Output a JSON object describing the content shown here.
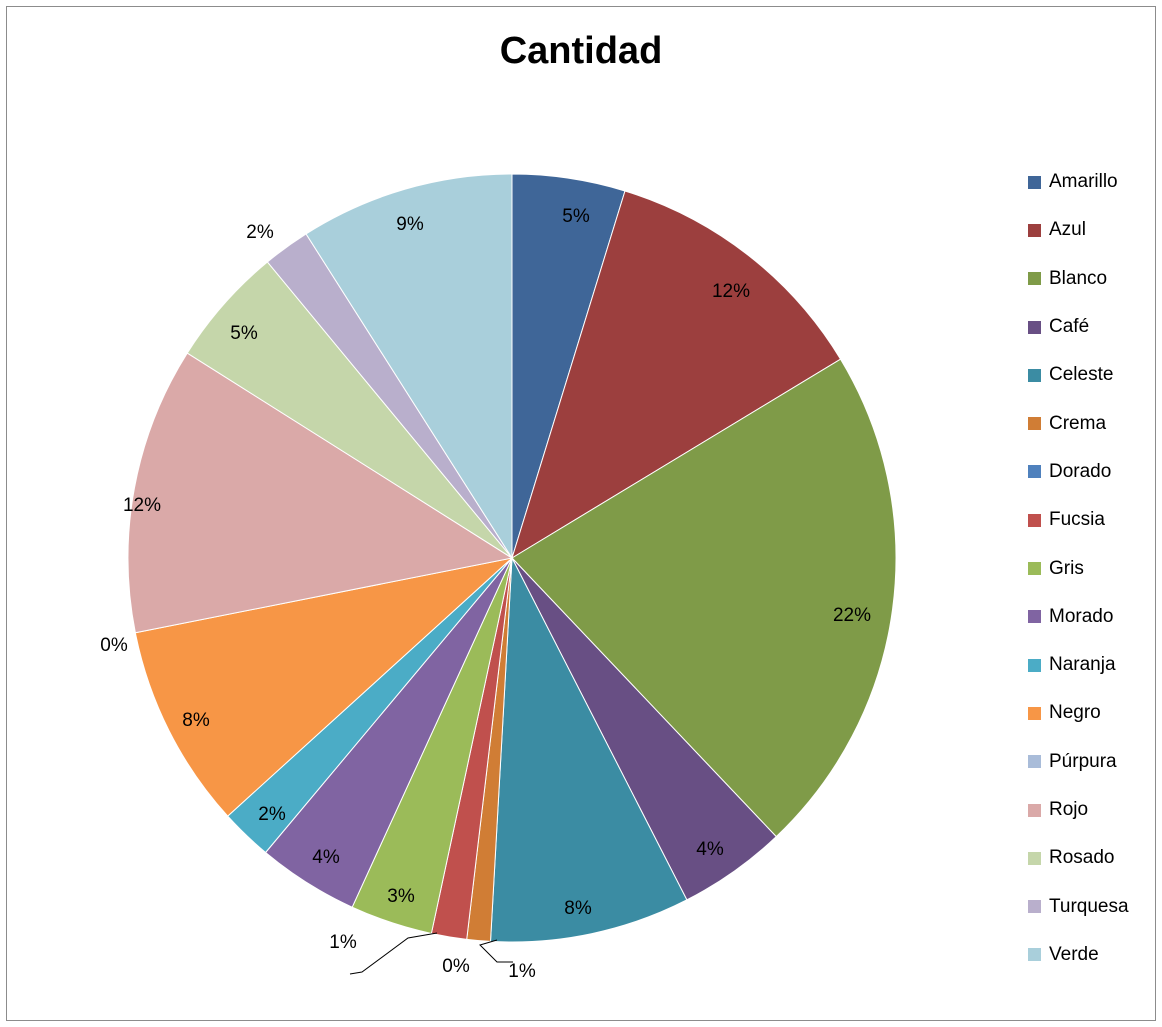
{
  "chart_data": {
    "type": "pie",
    "title": "Cantidad",
    "legend_position": "right",
    "slices": [
      {
        "name": "Amarillo",
        "percent": 5,
        "label": "5%",
        "color": "#3f6698"
      },
      {
        "name": "Azul",
        "percent": 12,
        "label": "12%",
        "color": "#9c3f3e"
      },
      {
        "name": "Blanco",
        "percent": 22,
        "label": "22%",
        "color": "#7f9b48"
      },
      {
        "name": "Café",
        "percent": 4,
        "label": "4%",
        "color": "#684f84"
      },
      {
        "name": "Celeste",
        "percent": 8,
        "label": "8%",
        "color": "#3b8ca3"
      },
      {
        "name": "Crema",
        "percent": 1,
        "label": "1%",
        "color": "#d07d35"
      },
      {
        "name": "Dorado",
        "percent": 0,
        "label": "0%",
        "color": "#4f81bd"
      },
      {
        "name": "Fucsia",
        "percent": 1,
        "label": "1%",
        "color": "#c0504d"
      },
      {
        "name": "Gris",
        "percent": 3,
        "label": "3%",
        "color": "#9bbb59"
      },
      {
        "name": "Morado",
        "percent": 4,
        "label": "4%",
        "color": "#8064a2"
      },
      {
        "name": "Naranja",
        "percent": 2,
        "label": "2%",
        "color": "#4bacc6"
      },
      {
        "name": "Negro",
        "percent": 8,
        "label": "8%",
        "color": "#f79646"
      },
      {
        "name": "Púrpura",
        "percent": 0,
        "label": "0%",
        "color": "#a9bcd9"
      },
      {
        "name": "Rojo",
        "percent": 12,
        "label": "12%",
        "color": "#daa9a8"
      },
      {
        "name": "Rosado",
        "percent": 5,
        "label": "5%",
        "color": "#c5d6aa"
      },
      {
        "name": "Turquesa",
        "percent": 2,
        "label": "2%",
        "color": "#b9afcc"
      },
      {
        "name": "Verde",
        "percent": 9,
        "label": "9%",
        "color": "#a9cfdb"
      }
    ]
  }
}
